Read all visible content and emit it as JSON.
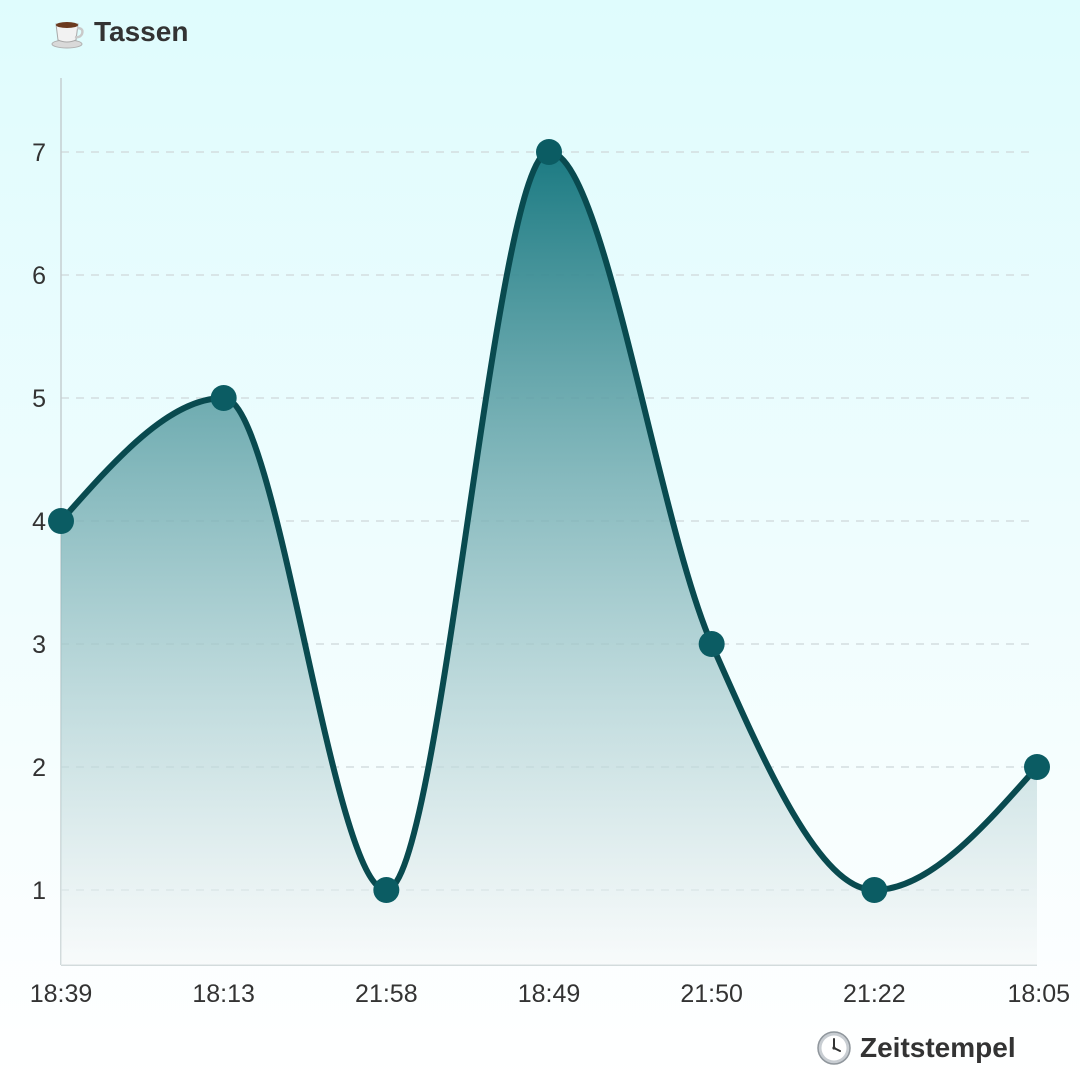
{
  "chart_data": {
    "type": "area",
    "xlabel": "Zeitstempel",
    "ylabel": "Tassen",
    "x_icon": "clock-icon",
    "y_icon": "coffee-cup-icon",
    "categories": [
      "18:39",
      "18:13",
      "21:58",
      "18:49",
      "21:50",
      "21:22",
      "18:05"
    ],
    "values": [
      4,
      5,
      1,
      7,
      3,
      1,
      2
    ],
    "yticks": [
      1,
      2,
      3,
      4,
      5,
      6,
      7
    ],
    "ylim": [
      0.4,
      7.6
    ],
    "grid": "horizontal-dashed",
    "curve": "smooth",
    "colors": {
      "line": "#094a4f",
      "marker": "#0b5c63",
      "fill_top": "#1b7a82",
      "fill_bottom": "#f5f8f8",
      "grid": "#d3dddf",
      "axis": "#c5cfd1"
    }
  }
}
